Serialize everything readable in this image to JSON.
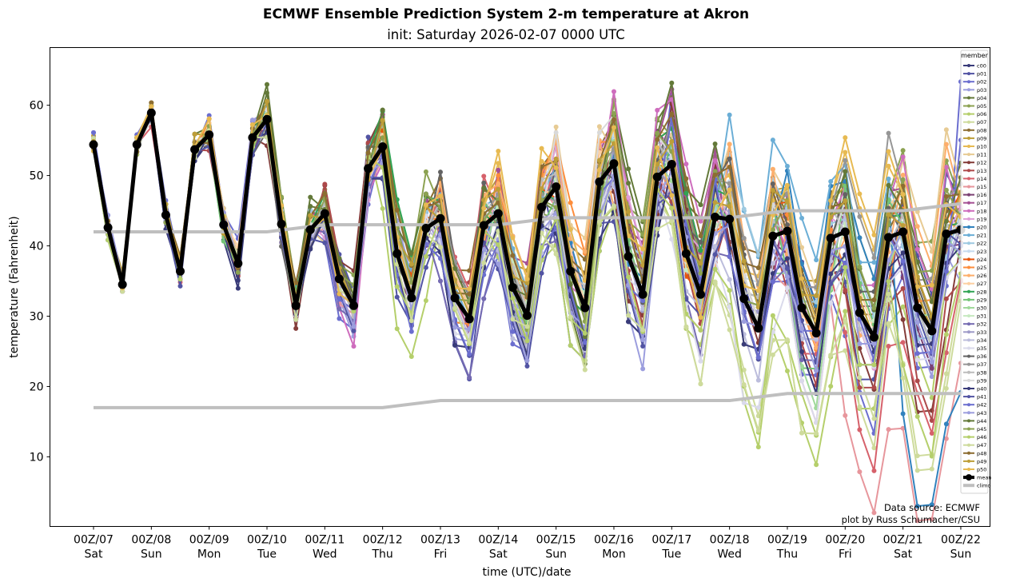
{
  "chart_data": {
    "type": "line",
    "title": "ECMWF Ensemble Prediction System 2-m temperature at Akron",
    "subtitle": "init: Saturday 2026-02-07 0000 UTC",
    "xlabel": "time (UTC)/date",
    "ylabel": "temperature (Fahrenheit)",
    "ylim": [
      0.1,
      68.2
    ],
    "xlim_days": [
      -0.75,
      15.5
    ],
    "yticks": [
      10,
      20,
      30,
      40,
      50,
      60
    ],
    "xticks": [
      {
        "day": 0,
        "top": "00Z/07",
        "bottom": "Sat"
      },
      {
        "day": 1,
        "top": "00Z/08",
        "bottom": "Sun"
      },
      {
        "day": 2,
        "top": "00Z/09",
        "bottom": "Mon"
      },
      {
        "day": 3,
        "top": "00Z/10",
        "bottom": "Tue"
      },
      {
        "day": 4,
        "top": "00Z/11",
        "bottom": "Wed"
      },
      {
        "day": 5,
        "top": "00Z/12",
        "bottom": "Thu"
      },
      {
        "day": 6,
        "top": "00Z/13",
        "bottom": "Fri"
      },
      {
        "day": 7,
        "top": "00Z/14",
        "bottom": "Sat"
      },
      {
        "day": 8,
        "top": "00Z/15",
        "bottom": "Sun"
      },
      {
        "day": 9,
        "top": "00Z/16",
        "bottom": "Mon"
      },
      {
        "day": 10,
        "top": "00Z/17",
        "bottom": "Tue"
      },
      {
        "day": 11,
        "top": "00Z/18",
        "bottom": "Wed"
      },
      {
        "day": 12,
        "top": "00Z/19",
        "bottom": "Thu"
      },
      {
        "day": 13,
        "top": "00Z/20",
        "bottom": "Fri"
      },
      {
        "day": 14,
        "top": "00Z/21",
        "bottom": "Sat"
      },
      {
        "day": 15,
        "top": "00Z/22",
        "bottom": "Sun"
      }
    ],
    "time_step_hours": 6,
    "mean": {
      "name": "mean",
      "color": "#000000",
      "values": [
        54.4,
        42.6,
        34.5,
        54.4,
        58.9,
        44.4,
        36.4,
        53.7,
        55.8,
        43.0,
        37.5,
        55.4,
        58.0,
        43.1,
        31.5,
        42.3,
        44.6,
        35.3,
        31.5,
        51.0,
        54.1,
        38.9,
        32.6,
        42.5,
        43.9,
        32.6,
        29.6,
        42.9,
        44.6,
        34.1,
        30.1,
        45.5,
        48.4,
        36.4,
        31.2,
        49.1,
        51.7,
        38.5,
        33.1,
        49.8,
        51.6,
        38.9,
        33.1,
        44.1,
        43.8,
        32.5,
        28.3,
        41.4,
        42.1,
        31.2,
        27.6,
        41.1,
        42.0,
        30.5,
        27.0,
        41.2,
        42.0,
        31.2,
        27.9,
        41.7,
        42.3
      ]
    },
    "climo": {
      "name": "climo",
      "color": "#bfbfbf",
      "upper": {
        "days": [
          0,
          3,
          4,
          7,
          8,
          11,
          12,
          14,
          15
        ],
        "values": [
          42,
          42,
          43,
          43,
          44,
          44,
          45,
          45,
          46
        ]
      },
      "lower": {
        "days": [
          0,
          5,
          6,
          11,
          12,
          15
        ],
        "values": [
          17,
          17,
          18,
          18,
          19,
          19
        ]
      }
    },
    "legend": {
      "title": "member",
      "position": "top-right",
      "entries": [
        "c00",
        "p01",
        "p02",
        "p03",
        "p04",
        "p05",
        "p06",
        "p07",
        "p08",
        "p09",
        "p10",
        "p11",
        "p12",
        "p13",
        "p14",
        "p15",
        "p16",
        "p17",
        "p18",
        "p19",
        "p20",
        "p21",
        "p22",
        "p23",
        "p24",
        "p25",
        "p26",
        "p27",
        "p28",
        "p29",
        "p30",
        "p31",
        "p32",
        "p33",
        "p34",
        "p35",
        "p36",
        "p37",
        "p38",
        "p39",
        "p40",
        "p41",
        "p42",
        "p43",
        "p44",
        "p45",
        "p46",
        "p47",
        "p48",
        "p49",
        "p50",
        "mean",
        "climo"
      ]
    },
    "member_colors": [
      "#393b79",
      "#5254a3",
      "#6b6ecf",
      "#9c9ede",
      "#637939",
      "#8ca252",
      "#b5cf6b",
      "#cedb9c",
      "#8c6d31",
      "#bd9e39",
      "#e7ba52",
      "#e7cb94",
      "#843c39",
      "#ad494a",
      "#d6616b",
      "#e7969c",
      "#7b4173",
      "#a55194",
      "#ce6dbd",
      "#de9ed6",
      "#3182bd",
      "#6baed6",
      "#9ecae1",
      "#c6dbef",
      "#e6550d",
      "#fd8d3c",
      "#fdae6b",
      "#fdd0a2",
      "#31a354",
      "#74c476",
      "#a1d99b",
      "#c7e9c0",
      "#756bb1",
      "#9e9ac8",
      "#bcbddc",
      "#dadaeb",
      "#636363",
      "#969696",
      "#bdbdbd",
      "#d9d9d9",
      "#393b79",
      "#5254a3",
      "#6b6ecf",
      "#9c9ede",
      "#637939",
      "#8ca252",
      "#b5cf6b",
      "#cedb9c",
      "#8c6d31",
      "#bd9e39",
      "#e7ba52"
    ],
    "member_daily_bias": [
      [
        0,
        -1,
        -2,
        1,
        -1,
        2,
        -3,
        1,
        2,
        -4,
        3,
        -2,
        -3,
        -2,
        2,
        1
      ],
      [
        -1,
        0,
        1,
        -1,
        2,
        -2,
        -4,
        3,
        -5,
        2,
        -3,
        1,
        2,
        -4,
        3,
        2
      ],
      [
        1,
        1,
        2,
        -1,
        -3,
        -1,
        -5,
        -4,
        -2,
        -3,
        4,
        -2,
        -4,
        -6,
        -3,
        9
      ],
      [
        1,
        0,
        1,
        1,
        -2,
        2,
        -3,
        -1,
        1,
        -4,
        2,
        3,
        -2,
        -1,
        -2,
        -3
      ],
      [
        0,
        1,
        1,
        3,
        1,
        3,
        2,
        1,
        -3,
        5,
        4,
        2,
        -1,
        3,
        3,
        4
      ],
      [
        0,
        1,
        0,
        2,
        2,
        4,
        1,
        -1,
        -2,
        4,
        3,
        1,
        2,
        4,
        5,
        3
      ],
      [
        -1,
        0,
        0,
        -1,
        1,
        -6,
        -1,
        -3,
        -5,
        -2,
        -4,
        -7,
        -9,
        -6,
        -4,
        -2
      ],
      [
        0,
        0,
        -1,
        0,
        1,
        0,
        2,
        -1,
        -4,
        -1,
        -5,
        -6,
        -8,
        -7,
        -9,
        -5
      ],
      [
        0,
        1,
        0,
        1,
        -1,
        3,
        3,
        2,
        3,
        2,
        3,
        4,
        2,
        1,
        1,
        2
      ],
      [
        1,
        1,
        0,
        1,
        0,
        1,
        1,
        3,
        2,
        1,
        1,
        2,
        3,
        2,
        0,
        1
      ],
      [
        0,
        1,
        1,
        1,
        -1,
        1,
        2,
        3,
        2,
        2,
        1,
        3,
        2,
        6,
        2,
        3
      ],
      [
        0,
        0,
        1,
        0,
        -2,
        0,
        0,
        1,
        4,
        2,
        2,
        4,
        3,
        1,
        6,
        3
      ],
      [
        0,
        0,
        0,
        -2,
        3,
        2,
        1,
        1,
        0,
        -2,
        3,
        -1,
        1,
        -3,
        -6,
        -2
      ],
      [
        0,
        0,
        -1,
        -1,
        2,
        1,
        2,
        0,
        -1,
        -1,
        -2,
        0,
        -3,
        -4,
        -5,
        -3
      ],
      [
        0,
        -1,
        0,
        1,
        1,
        0,
        3,
        0,
        1,
        2,
        0,
        1,
        -2,
        -8,
        -7,
        -4
      ],
      [
        0,
        0,
        0,
        0,
        -2,
        0,
        -1,
        1,
        -1,
        0,
        -1,
        -2,
        -5,
        -12,
        -14,
        -8
      ],
      [
        0,
        0,
        -1,
        0,
        0,
        -1,
        1,
        1,
        0,
        2,
        1,
        -1,
        -1,
        1,
        -2,
        -1
      ],
      [
        0,
        0,
        0,
        1,
        -1,
        2,
        -1,
        3,
        1,
        3,
        4,
        -2,
        2,
        2,
        3,
        2
      ],
      [
        0,
        0,
        1,
        0,
        -3,
        -1,
        -2,
        2,
        0,
        4,
        5,
        1,
        0,
        3,
        4,
        1
      ],
      [
        0,
        0,
        0,
        0,
        -2,
        1,
        -1,
        1,
        2,
        3,
        2,
        1,
        2,
        -1,
        1,
        1
      ],
      [
        0,
        0,
        0,
        0,
        1,
        1,
        -1,
        0,
        1,
        0,
        2,
        1,
        3,
        4,
        -13,
        -10
      ],
      [
        0,
        0,
        0,
        1,
        1,
        2,
        1,
        2,
        1,
        0,
        1,
        6,
        5,
        4,
        1,
        1
      ],
      [
        0,
        0,
        0,
        1,
        0,
        1,
        2,
        1,
        0,
        2,
        0,
        5,
        1,
        2,
        -1,
        0
      ],
      [
        0,
        0,
        0,
        0,
        -1,
        0,
        1,
        1,
        2,
        1,
        1,
        2,
        1,
        0,
        0,
        1
      ],
      [
        0,
        0,
        0,
        0,
        0,
        1,
        1,
        2,
        -2,
        2,
        -1,
        1,
        2,
        1,
        2,
        2
      ],
      [
        0,
        0,
        1,
        0,
        0,
        1,
        -1,
        2,
        4,
        1,
        -1,
        2,
        0,
        -2,
        1,
        1
      ],
      [
        0,
        0,
        0,
        0,
        1,
        0,
        2,
        3,
        3,
        -2,
        -3,
        4,
        -1,
        -1,
        5,
        2
      ],
      [
        0,
        0,
        1,
        0,
        0,
        0,
        1,
        1,
        1,
        1,
        2,
        3,
        0,
        1,
        3,
        2
      ],
      [
        0,
        0,
        0,
        1,
        1,
        4,
        1,
        0,
        -1,
        2,
        3,
        1,
        1,
        2,
        0,
        1
      ],
      [
        0,
        0,
        -1,
        0,
        1,
        2,
        1,
        -1,
        -2,
        0,
        1,
        1,
        -3,
        2,
        1,
        0
      ],
      [
        0,
        0,
        0,
        0,
        0,
        0,
        -2,
        0,
        -1,
        1,
        0,
        -2,
        -4,
        -1,
        0,
        -1
      ],
      [
        0,
        0,
        0,
        0,
        1,
        0,
        -1,
        1,
        0,
        0,
        0,
        -1,
        -2,
        0,
        -1,
        0
      ],
      [
        0,
        0,
        0,
        -1,
        -2,
        -1,
        -5,
        -3,
        -3,
        -1,
        -3,
        -2,
        -3,
        -1,
        -2,
        -1
      ],
      [
        0,
        0,
        0,
        -1,
        -1,
        -1,
        -2,
        -2,
        -2,
        0,
        -1,
        0,
        -2,
        -1,
        -1,
        -1
      ],
      [
        0,
        0,
        0,
        0,
        -1,
        0,
        -1,
        -3,
        -2,
        -1,
        -2,
        -3,
        -1,
        0,
        -1,
        0
      ],
      [
        0,
        0,
        0,
        0,
        0,
        0,
        -2,
        -2,
        -1,
        -1,
        -4,
        -6,
        -5,
        -2,
        -3,
        -1
      ],
      [
        0,
        0,
        -1,
        -2,
        1,
        0,
        3,
        0,
        1,
        0,
        3,
        3,
        1,
        2,
        1,
        1
      ],
      [
        0,
        0,
        0,
        -1,
        0,
        -1,
        2,
        1,
        0,
        1,
        2,
        3,
        2,
        6,
        3,
        2
      ],
      [
        0,
        0,
        0,
        0,
        0,
        1,
        1,
        1,
        1,
        2,
        0,
        1,
        1,
        0,
        0,
        0
      ],
      [
        0,
        0,
        0,
        0,
        0,
        0,
        1,
        0,
        3,
        4,
        0,
        1,
        0,
        1,
        1,
        0
      ],
      [
        0,
        -1,
        -1,
        -1,
        -1,
        -2,
        -3,
        -2,
        -3,
        -4,
        1,
        -2,
        -3,
        -1,
        -2,
        0
      ],
      [
        0,
        -1,
        -1,
        -1,
        -2,
        -3,
        -2,
        -4,
        -3,
        -3,
        -2,
        -1,
        -2,
        -3,
        -1,
        -1
      ],
      [
        1,
        0,
        0,
        -1,
        -1,
        -2,
        -3,
        -3,
        -2,
        -1,
        2,
        -2,
        -1,
        -1,
        -2,
        5
      ],
      [
        1,
        0,
        1,
        0,
        -1,
        -1,
        -2,
        -3,
        -2,
        -2,
        0,
        -1,
        -2,
        -1,
        -1,
        -1
      ],
      [
        0,
        1,
        0,
        2,
        1,
        3,
        2,
        1,
        -1,
        4,
        5,
        2,
        2,
        3,
        2,
        3
      ],
      [
        0,
        0,
        0,
        1,
        1,
        2,
        1,
        0,
        -1,
        3,
        2,
        1,
        1,
        2,
        3,
        2
      ],
      [
        0,
        0,
        0,
        0,
        0,
        -2,
        -1,
        -2,
        -3,
        -2,
        -3,
        -6,
        -7,
        -3,
        -8,
        -3
      ],
      [
        0,
        0,
        0,
        -1,
        0,
        -1,
        -2,
        -2,
        -4,
        -3,
        -5,
        -7,
        -8,
        -5,
        -10,
        -6
      ],
      [
        0,
        1,
        0,
        2,
        1,
        3,
        1,
        2,
        2,
        2,
        4,
        3,
        1,
        2,
        2,
        3
      ],
      [
        0,
        1,
        0,
        1,
        0,
        2,
        1,
        2,
        1,
        2,
        1,
        2,
        2,
        1,
        1,
        2
      ],
      [
        0,
        1,
        1,
        1,
        -1,
        1,
        2,
        4,
        2,
        2,
        -1,
        2,
        2,
        7,
        2,
        2
      ]
    ],
    "credits": [
      "Data source: ECMWF",
      "plot by Russ Schumacher/CSU"
    ]
  }
}
